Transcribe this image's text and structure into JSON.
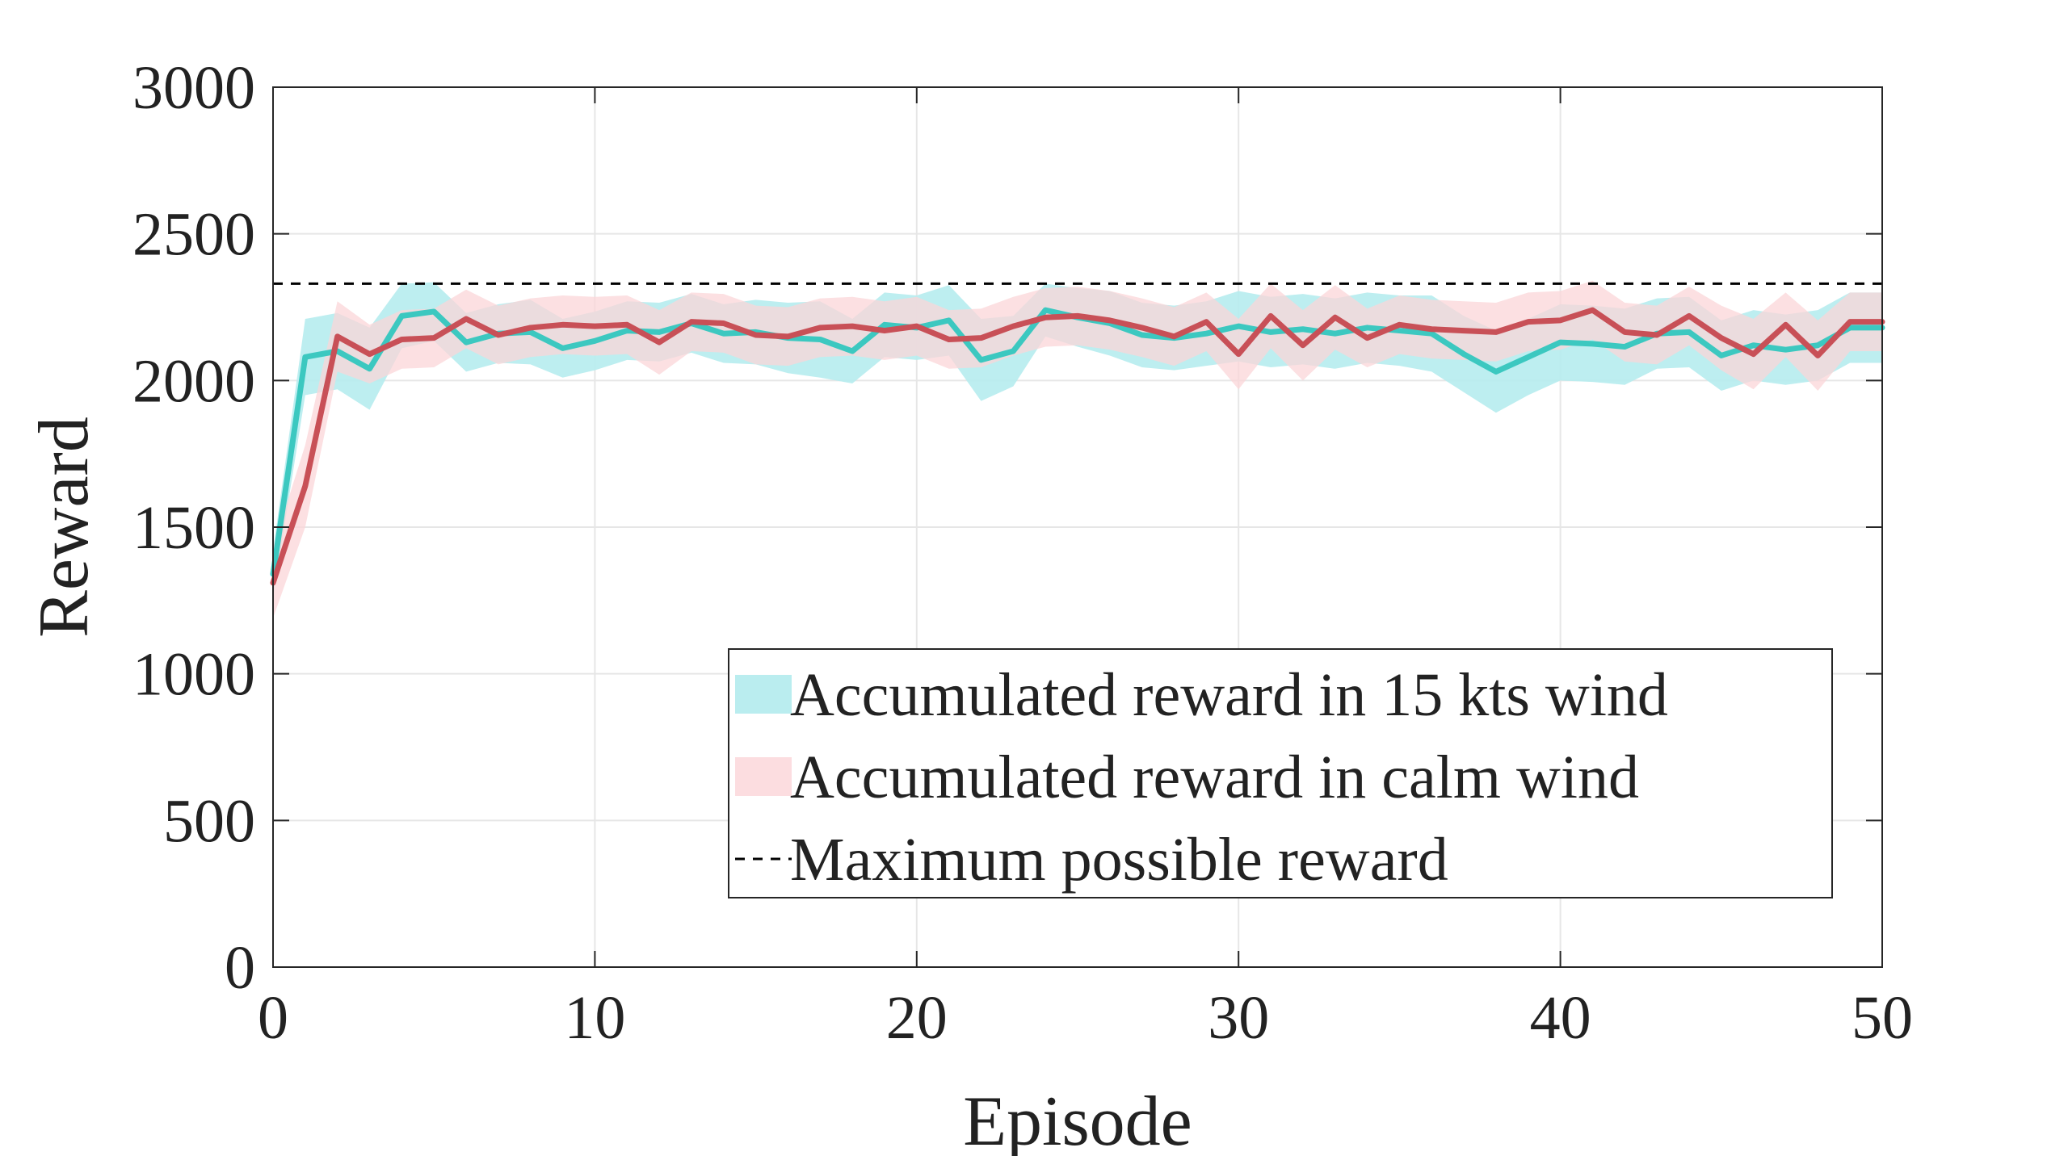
{
  "chart_data": {
    "type": "line",
    "title": "",
    "xlabel": "Episode",
    "ylabel": "Reward",
    "xlim": [
      0,
      50
    ],
    "ylim": [
      0,
      3000
    ],
    "x_ticks": [
      0,
      10,
      20,
      30,
      40,
      50
    ],
    "y_ticks": [
      0,
      500,
      1000,
      1500,
      2000,
      2500,
      3000
    ],
    "grid": true,
    "legend_position": "bottom-right",
    "x": [
      0,
      1,
      2,
      3,
      4,
      5,
      6,
      7,
      8,
      9,
      10,
      11,
      12,
      13,
      14,
      15,
      16,
      17,
      18,
      19,
      20,
      21,
      22,
      23,
      24,
      25,
      26,
      27,
      28,
      29,
      30,
      31,
      32,
      33,
      34,
      35,
      36,
      37,
      38,
      39,
      40,
      41,
      42,
      43,
      44,
      45,
      46,
      47,
      48,
      49,
      50
    ],
    "series": [
      {
        "name": "Accumulated reward in 15 kts wind",
        "color": "#3cc8c0",
        "band_color": "#b6ecee",
        "values": [
          1340,
          2080,
          2100,
          2040,
          2220,
          2235,
          2130,
          2160,
          2165,
          2110,
          2135,
          2170,
          2165,
          2195,
          2160,
          2165,
          2145,
          2140,
          2100,
          2190,
          2180,
          2205,
          2070,
          2100,
          2240,
          2215,
          2195,
          2155,
          2145,
          2160,
          2185,
          2165,
          2175,
          2160,
          2180,
          2170,
          2160,
          2090,
          2030,
          2080,
          2130,
          2125,
          2115,
          2160,
          2165,
          2085,
          2120,
          2105,
          2120,
          2180,
          2180
        ],
        "band_width": [
          80,
          130,
          130,
          140,
          110,
          100,
          100,
          100,
          110,
          100,
          100,
          100,
          100,
          100,
          100,
          110,
          120,
          130,
          110,
          110,
          110,
          120,
          140,
          120,
          90,
          100,
          110,
          110,
          110,
          110,
          120,
          120,
          120,
          120,
          120,
          120,
          130,
          130,
          140,
          130,
          130,
          130,
          130,
          120,
          120,
          120,
          120,
          120,
          120,
          120,
          120
        ]
      },
      {
        "name": "Accumulated reward in calm wind",
        "color": "#c85057",
        "band_color": "#fbd5d8",
        "values": [
          1310,
          1640,
          2150,
          2090,
          2140,
          2145,
          2210,
          2155,
          2180,
          2190,
          2185,
          2190,
          2130,
          2200,
          2195,
          2155,
          2150,
          2180,
          2185,
          2170,
          2185,
          2140,
          2145,
          2185,
          2215,
          2220,
          2205,
          2180,
          2150,
          2200,
          2090,
          2220,
          2120,
          2215,
          2145,
          2190,
          2175,
          2170,
          2165,
          2200,
          2205,
          2240,
          2165,
          2155,
          2220,
          2145,
          2090,
          2190,
          2085,
          2200,
          2200
        ],
        "band_width": [
          120,
          140,
          120,
          100,
          100,
          100,
          100,
          100,
          100,
          100,
          100,
          100,
          110,
          100,
          100,
          100,
          100,
          100,
          100,
          100,
          100,
          100,
          100,
          100,
          100,
          100,
          100,
          100,
          100,
          100,
          120,
          110,
          120,
          110,
          100,
          100,
          100,
          100,
          100,
          100,
          100,
          100,
          100,
          100,
          100,
          110,
          120,
          110,
          120,
          100,
          100
        ]
      }
    ],
    "reference_lines": [
      {
        "name": "Maximum possible reward",
        "value": 2330,
        "color": "#000000",
        "style": "dashed"
      }
    ]
  }
}
